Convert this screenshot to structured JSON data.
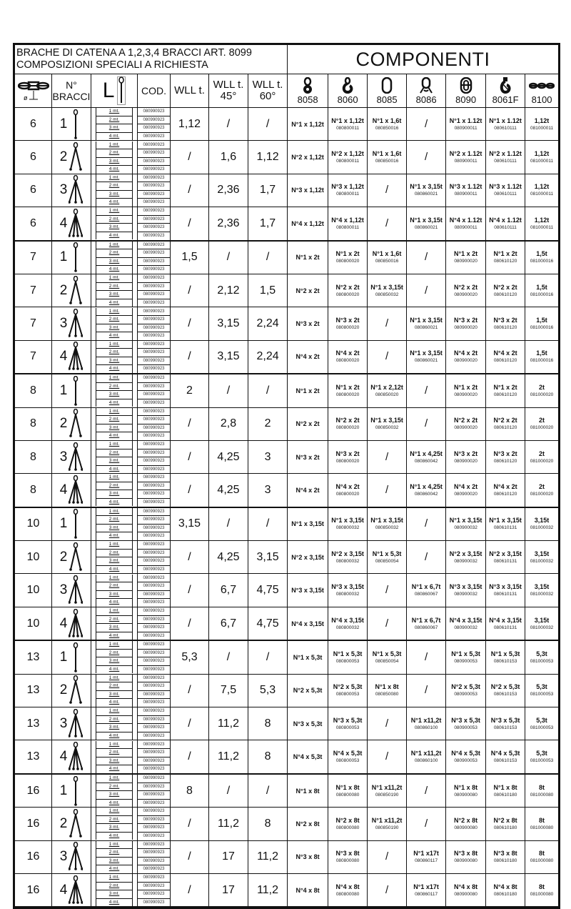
{
  "header": {
    "title_line1": "BRACHE DI CATENA A 1,2,3,4 BRACCI ART. 8099",
    "title_line2": "COMPOSIZIONI SPECIALI A RICHIESTA",
    "components_title": "COMPONENTI"
  },
  "columns": {
    "diameter_icon": "chain-diameter-icon",
    "diameter_symbol": "ø",
    "bracci": "N° BRACCI",
    "length": "L",
    "cod": "COD.",
    "wll": "WLL t.",
    "wll45_a": "WLL t.",
    "wll45_b": "45°",
    "wll60_a": "WLL t.",
    "wll60_b": "60°",
    "components": [
      {
        "code": "8058",
        "icon": "master-link-eye-icon"
      },
      {
        "code": "8060",
        "icon": "hook-icon"
      },
      {
        "code": "8085",
        "icon": "oval-link-icon"
      },
      {
        "code": "8086",
        "icon": "master-link-assembly-icon"
      },
      {
        "code": "8090",
        "icon": "connecting-link-icon"
      },
      {
        "code": "8061F",
        "icon": "foundry-hook-icon"
      },
      {
        "code": "8100",
        "icon": "chain-icon"
      }
    ]
  },
  "lengths": [
    "1 mt.",
    "2 mt.",
    "3 mt.",
    "4 mt."
  ],
  "length_codes": [
    "080990923",
    "080990923",
    "080990923",
    "080990923"
  ],
  "rows": [
    {
      "dia": "6",
      "bracci": "1",
      "wll": "1,12",
      "wll45": "/",
      "wll60": "/",
      "comp": [
        [
          "N°1 x 1,12t",
          ""
        ],
        [
          "N°1 x 1,12t",
          "080800011"
        ],
        [
          "N°1 x 1,6t",
          "080850016"
        ],
        [
          "/",
          ""
        ],
        [
          "N°1 x 1.12t",
          "080900011"
        ],
        [
          "N°1 x 1.12t",
          "080610111"
        ],
        [
          "1,12t",
          "081000011"
        ]
      ]
    },
    {
      "dia": "6",
      "bracci": "2",
      "wll": "/",
      "wll45": "1,6",
      "wll60": "1,12",
      "comp": [
        [
          "N°2 x 1,12t",
          ""
        ],
        [
          "N°2 x 1,12t",
          "080800011"
        ],
        [
          "N°1 x 1,6t",
          "080850016"
        ],
        [
          "/",
          ""
        ],
        [
          "N°2 x 1.12t",
          "080900011"
        ],
        [
          "N°2 x 1.12t",
          "080610111"
        ],
        [
          "1,12t",
          "081000011"
        ]
      ]
    },
    {
      "dia": "6",
      "bracci": "3",
      "wll": "/",
      "wll45": "2,36",
      "wll60": "1,7",
      "comp": [
        [
          "N°3 x 1,12t",
          ""
        ],
        [
          "N°3 x 1,12t",
          "080800011"
        ],
        [
          "/",
          ""
        ],
        [
          "N°1 x 3,15t",
          "080860021"
        ],
        [
          "N°3 x 1.12t",
          "080900011"
        ],
        [
          "N°3 x 1.12t",
          "080610111"
        ],
        [
          "1,12t",
          "081000011"
        ]
      ]
    },
    {
      "dia": "6",
      "bracci": "4",
      "wll": "/",
      "wll45": "2,36",
      "wll60": "1,7",
      "comp": [
        [
          "N°4 x 1,12t",
          ""
        ],
        [
          "N°4 x 1,12t",
          "080800011"
        ],
        [
          "/",
          ""
        ],
        [
          "N°1 x 3,15t",
          "080860021"
        ],
        [
          "N°4 x 1.12t",
          "080900011"
        ],
        [
          "N°4 x 1.12t",
          "080610111"
        ],
        [
          "1,12t",
          "081000011"
        ]
      ]
    },
    {
      "dia": "7",
      "bracci": "1",
      "wll": "1,5",
      "wll45": "/",
      "wll60": "/",
      "comp": [
        [
          "N°1 x 2t",
          ""
        ],
        [
          "N°1 x 2t",
          "080800020"
        ],
        [
          "N°1 x 1,6t",
          "080850016"
        ],
        [
          "/",
          ""
        ],
        [
          "N°1 x 2t",
          "080900020"
        ],
        [
          "N°1 x 2t",
          "080610120"
        ],
        [
          "1,5t",
          "081000016"
        ]
      ]
    },
    {
      "dia": "7",
      "bracci": "2",
      "wll": "/",
      "wll45": "2,12",
      "wll60": "1,5",
      "comp": [
        [
          "N°2 x 2t",
          ""
        ],
        [
          "N°2 x 2t",
          "080800020"
        ],
        [
          "N°1 x 3,15t",
          "080850032"
        ],
        [
          "/",
          ""
        ],
        [
          "N°2 x 2t",
          "080900020"
        ],
        [
          "N°2 x 2t",
          "080610120"
        ],
        [
          "1,5t",
          "081000016"
        ]
      ]
    },
    {
      "dia": "7",
      "bracci": "3",
      "wll": "/",
      "wll45": "3,15",
      "wll60": "2,24",
      "comp": [
        [
          "N°3 x 2t",
          ""
        ],
        [
          "N°3 x 2t",
          "080800020"
        ],
        [
          "/",
          ""
        ],
        [
          "N°1 x 3,15t",
          "080860021"
        ],
        [
          "N°3 x 2t",
          "080900020"
        ],
        [
          "N°3 x 2t",
          "080610120"
        ],
        [
          "1,5t",
          "081000016"
        ]
      ]
    },
    {
      "dia": "7",
      "bracci": "4",
      "wll": "/",
      "wll45": "3,15",
      "wll60": "2,24",
      "comp": [
        [
          "N°4 x 2t",
          ""
        ],
        [
          "N°4 x 2t",
          "080800020"
        ],
        [
          "/",
          ""
        ],
        [
          "N°1 x 3,15t",
          "080860021"
        ],
        [
          "N°4 x 2t",
          "080900020"
        ],
        [
          "N°4 x 2t",
          "080610120"
        ],
        [
          "1,5t",
          "081000016"
        ]
      ]
    },
    {
      "dia": "8",
      "bracci": "1",
      "wll": "2",
      "wll45": "/",
      "wll60": "/",
      "comp": [
        [
          "N°1 x 2t",
          ""
        ],
        [
          "N°1 x 2t",
          "080800020"
        ],
        [
          "N°1 x 2,12t",
          "080850020"
        ],
        [
          "/",
          ""
        ],
        [
          "N°1 x 2t",
          "080900020"
        ],
        [
          "N°1 x 2t",
          "080610120"
        ],
        [
          "2t",
          "081000020"
        ]
      ]
    },
    {
      "dia": "8",
      "bracci": "2",
      "wll": "/",
      "wll45": "2,8",
      "wll60": "2",
      "comp": [
        [
          "N°2 x 2t",
          ""
        ],
        [
          "N°2 x 2t",
          "080800020"
        ],
        [
          "N°1 x 3,15t",
          "080850032"
        ],
        [
          "/",
          ""
        ],
        [
          "N°2 x 2t",
          "080900020"
        ],
        [
          "N°2 x 2t",
          "080610120"
        ],
        [
          "2t",
          "081000020"
        ]
      ]
    },
    {
      "dia": "8",
      "bracci": "3",
      "wll": "/",
      "wll45": "4,25",
      "wll60": "3",
      "comp": [
        [
          "N°3 x 2t",
          ""
        ],
        [
          "N°3 x 2t",
          "080800020"
        ],
        [
          "/",
          ""
        ],
        [
          "N°1 x 4,25t",
          "080860042"
        ],
        [
          "N°3 x 2t",
          "080900020"
        ],
        [
          "N°3 x 2t",
          "080610120"
        ],
        [
          "2t",
          "081000020"
        ]
      ]
    },
    {
      "dia": "8",
      "bracci": "4",
      "wll": "/",
      "wll45": "4,25",
      "wll60": "3",
      "comp": [
        [
          "N°4 x 2t",
          ""
        ],
        [
          "N°4 x 2t",
          "080800020"
        ],
        [
          "/",
          ""
        ],
        [
          "N°1 x 4,25t",
          "080860042"
        ],
        [
          "N°4 x 2t",
          "080900020"
        ],
        [
          "N°4 x 2t",
          "080610120"
        ],
        [
          "2t",
          "081000020"
        ]
      ]
    },
    {
      "dia": "10",
      "bracci": "1",
      "wll": "3,15",
      "wll45": "/",
      "wll60": "/",
      "comp": [
        [
          "N°1 x 3,15t",
          ""
        ],
        [
          "N°1 x 3,15t",
          "080800032"
        ],
        [
          "N°1 x 3,15t",
          "080850032"
        ],
        [
          "/",
          ""
        ],
        [
          "N°1 x 3,15t",
          "080900032"
        ],
        [
          "N°1 x 3,15t",
          "080610131"
        ],
        [
          "3,15t",
          "081000032"
        ]
      ]
    },
    {
      "dia": "10",
      "bracci": "2",
      "wll": "/",
      "wll45": "4,25",
      "wll60": "3,15",
      "comp": [
        [
          "N°2 x 3,15t",
          ""
        ],
        [
          "N°2 x 3,15t",
          "080800032"
        ],
        [
          "N°1 x 5,3t",
          "080850054"
        ],
        [
          "/",
          ""
        ],
        [
          "N°2 x 3,15t",
          "080900032"
        ],
        [
          "N°2 x 3,15t",
          "080610131"
        ],
        [
          "3,15t",
          "081000032"
        ]
      ]
    },
    {
      "dia": "10",
      "bracci": "3",
      "wll": "/",
      "wll45": "6,7",
      "wll60": "4,75",
      "comp": [
        [
          "N°3 x 3,15t",
          ""
        ],
        [
          "N°3 x 3,15t",
          "080800032"
        ],
        [
          "/",
          ""
        ],
        [
          "N°1 x 6,7t",
          "080860067"
        ],
        [
          "N°3 x 3,15t",
          "080900032"
        ],
        [
          "N°3 x 3,15t",
          "080610131"
        ],
        [
          "3,15t",
          "081000032"
        ]
      ]
    },
    {
      "dia": "10",
      "bracci": "4",
      "wll": "/",
      "wll45": "6,7",
      "wll60": "4,75",
      "comp": [
        [
          "N°4 x 3,15t",
          ""
        ],
        [
          "N°4 x 3,15t",
          "080800032"
        ],
        [
          "/",
          ""
        ],
        [
          "N°1 x 6,7t",
          "080860067"
        ],
        [
          "N°4 x 3,15t",
          "080900032"
        ],
        [
          "N°4 x 3,15t",
          "080610131"
        ],
        [
          "3,15t",
          "081000032"
        ]
      ]
    },
    {
      "dia": "13",
      "bracci": "1",
      "wll": "5,3",
      "wll45": "/",
      "wll60": "/",
      "comp": [
        [
          "N°1 x 5,3t",
          ""
        ],
        [
          "N°1 x 5,3t",
          "080800053"
        ],
        [
          "N°1 x 5,3t",
          "080850054"
        ],
        [
          "/",
          ""
        ],
        [
          "N°1 x 5,3t",
          "080900053"
        ],
        [
          "N°1 x 5,3t",
          "080610153"
        ],
        [
          "5,3t",
          "081000053"
        ]
      ]
    },
    {
      "dia": "13",
      "bracci": "2",
      "wll": "/",
      "wll45": "7,5",
      "wll60": "5,3",
      "comp": [
        [
          "N°2 x 5,3t",
          ""
        ],
        [
          "N°2 x 5,3t",
          "080800053"
        ],
        [
          "N°1 x 8t",
          "080850080"
        ],
        [
          "/",
          ""
        ],
        [
          "N°2 x 5,3t",
          "080900053"
        ],
        [
          "N°2 x 5,3t",
          "080610153"
        ],
        [
          "5,3t",
          "081000053"
        ]
      ]
    },
    {
      "dia": "13",
      "bracci": "3",
      "wll": "/",
      "wll45": "11,2",
      "wll60": "8",
      "comp": [
        [
          "N°3 x 5,3t",
          ""
        ],
        [
          "N°3 x 5,3t",
          "080800053"
        ],
        [
          "/",
          ""
        ],
        [
          "N°1 x11,2t",
          "080860100"
        ],
        [
          "N°3 x 5,3t",
          "080900053"
        ],
        [
          "N°3 x 5,3t",
          "080610153"
        ],
        [
          "5,3t",
          "081000053"
        ]
      ]
    },
    {
      "dia": "13",
      "bracci": "4",
      "wll": "/",
      "wll45": "11,2",
      "wll60": "8",
      "comp": [
        [
          "N°4 x 5,3t",
          ""
        ],
        [
          "N°4 x 5,3t",
          "080800053"
        ],
        [
          "/",
          ""
        ],
        [
          "N°1 x11,2t",
          "080860100"
        ],
        [
          "N°4 x 5,3t",
          "080900053"
        ],
        [
          "N°4 x 5,3t",
          "080610153"
        ],
        [
          "5,3t",
          "081000053"
        ]
      ]
    },
    {
      "dia": "16",
      "bracci": "1",
      "wll": "8",
      "wll45": "/",
      "wll60": "/",
      "comp": [
        [
          "N°1 x 8t",
          ""
        ],
        [
          "N°1 x 8t",
          "080800080"
        ],
        [
          "N°1 x11,2t",
          "080850190"
        ],
        [
          "/",
          ""
        ],
        [
          "N°1 x 8t",
          "080900080"
        ],
        [
          "N°1 x 8t",
          "080610180"
        ],
        [
          "8t",
          "081000080"
        ]
      ]
    },
    {
      "dia": "16",
      "bracci": "2",
      "wll": "/",
      "wll45": "11,2",
      "wll60": "8",
      "comp": [
        [
          "N°2 x 8t",
          ""
        ],
        [
          "N°2 x 8t",
          "080800080"
        ],
        [
          "N°1 x11,2t",
          "080850190"
        ],
        [
          "/",
          ""
        ],
        [
          "N°2 x 8t",
          "080900080"
        ],
        [
          "N°2 x 8t",
          "080610180"
        ],
        [
          "8t",
          "081000080"
        ]
      ]
    },
    {
      "dia": "16",
      "bracci": "3",
      "wll": "/",
      "wll45": "17",
      "wll60": "11,2",
      "comp": [
        [
          "N°3 x 8t",
          ""
        ],
        [
          "N°3 x 8t",
          "080800080"
        ],
        [
          "/",
          ""
        ],
        [
          "N°1 x17t",
          "080860117"
        ],
        [
          "N°3 x 8t",
          "080900080"
        ],
        [
          "N°3 x 8t",
          "080610180"
        ],
        [
          "8t",
          "081000080"
        ]
      ]
    },
    {
      "dia": "16",
      "bracci": "4",
      "wll": "/",
      "wll45": "17",
      "wll60": "11,2",
      "comp": [
        [
          "N°4 x 8t",
          ""
        ],
        [
          "N°4 x 8t",
          "080800080"
        ],
        [
          "/",
          ""
        ],
        [
          "N°1 x17t",
          "080860117"
        ],
        [
          "N°4 x 8t",
          "080900080"
        ],
        [
          "N°4 x 8t",
          "080610180"
        ],
        [
          "8t",
          "081000080"
        ]
      ]
    }
  ]
}
